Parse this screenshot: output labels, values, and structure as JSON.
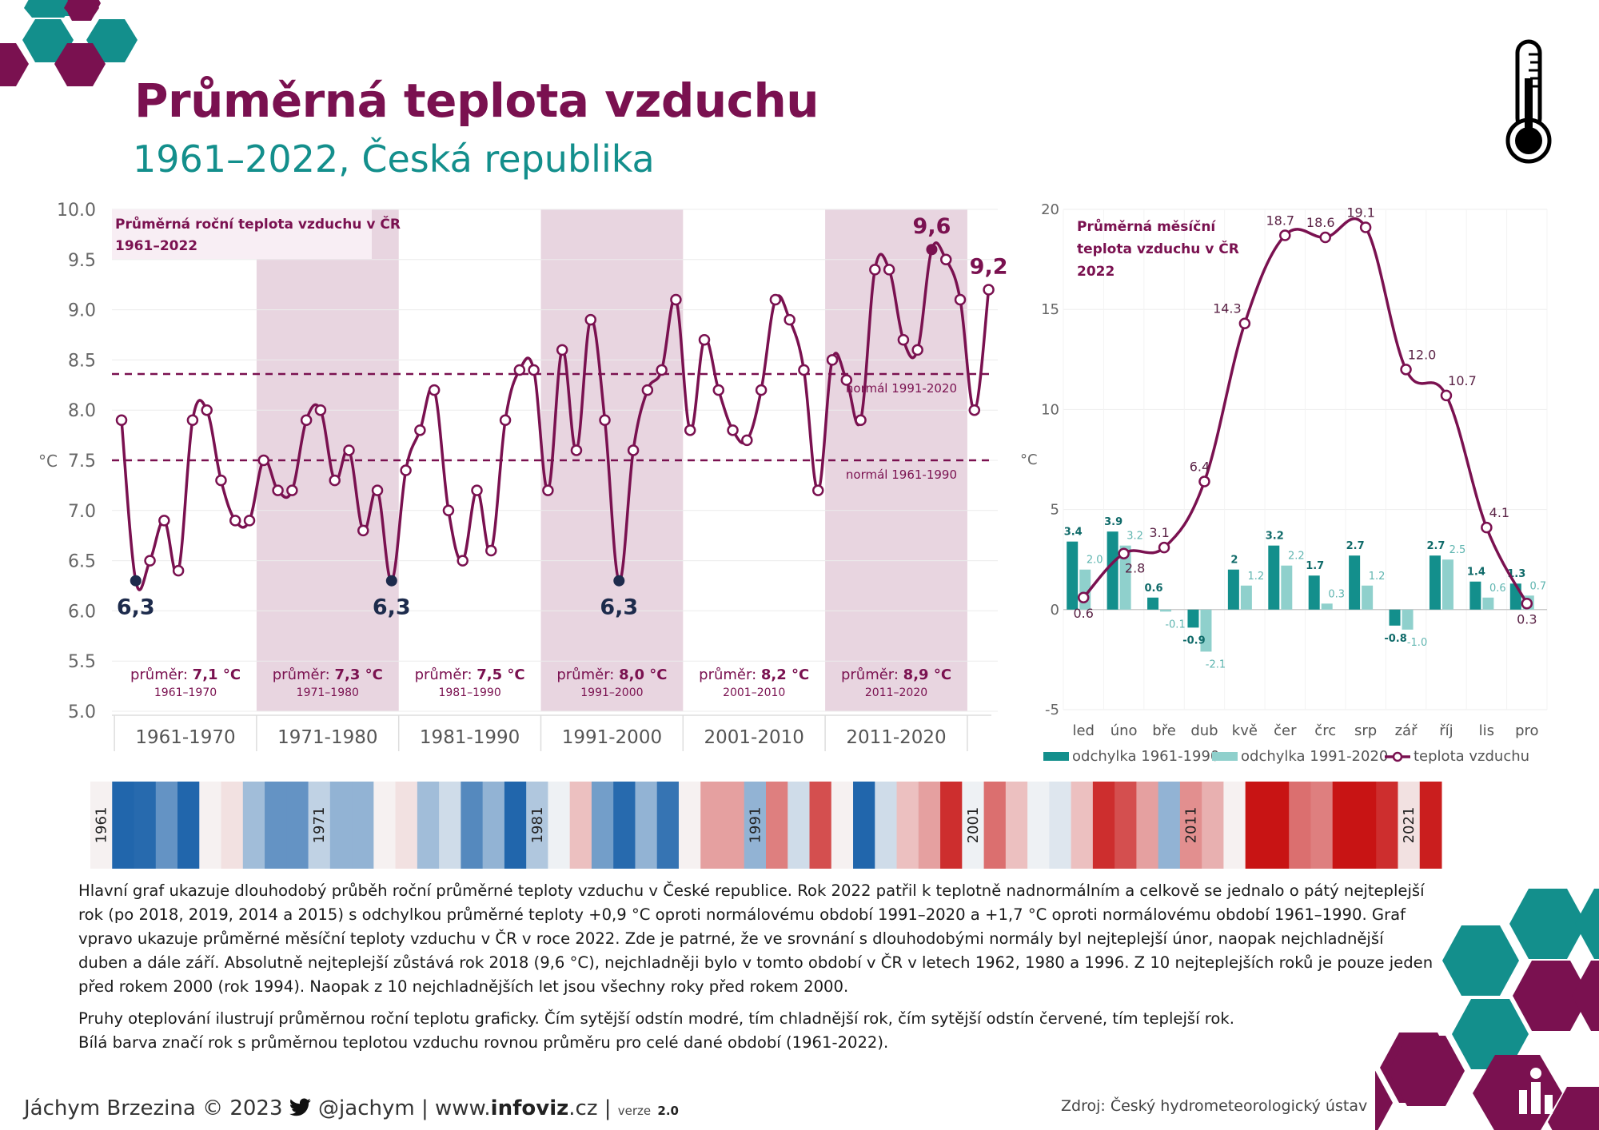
{
  "header": {
    "title": "Průměrná teplota vzduchu",
    "subtitle": "1961–2022, Česká republika"
  },
  "colors": {
    "primary": "#7a1150",
    "teal": "#138f8c",
    "light_teal": "#8fd0cc",
    "band": "#e8d5e0",
    "cold": "#2e6fb5",
    "warm": "#c81d1d"
  },
  "icons": [
    "thermometer-icon",
    "hexagon-decor-icon",
    "twitter-icon",
    "logo-icon"
  ],
  "chart_data": [
    {
      "type": "line",
      "title": "Průměrná roční teplota vzduchu v ČR 1961–2022",
      "ylabel": "°C",
      "ylim": [
        5.0,
        10.0
      ],
      "yticks": [
        "5.0",
        "5.5",
        "6.0",
        "6.5",
        "7.0",
        "7.5",
        "8.0",
        "8.5",
        "9.0",
        "9.5",
        "10.0"
      ],
      "x": [
        1961,
        1962,
        1963,
        1964,
        1965,
        1966,
        1967,
        1968,
        1969,
        1970,
        1971,
        1972,
        1973,
        1974,
        1975,
        1976,
        1977,
        1978,
        1979,
        1980,
        1981,
        1982,
        1983,
        1984,
        1985,
        1986,
        1987,
        1988,
        1989,
        1990,
        1991,
        1992,
        1993,
        1994,
        1995,
        1996,
        1997,
        1998,
        1999,
        2000,
        2001,
        2002,
        2003,
        2004,
        2005,
        2006,
        2007,
        2008,
        2009,
        2010,
        2011,
        2012,
        2013,
        2014,
        2015,
        2016,
        2017,
        2018,
        2019,
        2020,
        2021,
        2022
      ],
      "values": [
        7.9,
        6.3,
        6.5,
        6.9,
        6.4,
        7.9,
        8.0,
        7.3,
        6.9,
        6.9,
        7.5,
        7.2,
        7.2,
        7.9,
        8.0,
        7.3,
        7.6,
        6.8,
        7.2,
        6.3,
        7.4,
        7.8,
        8.2,
        7.0,
        6.5,
        7.2,
        6.6,
        7.9,
        8.4,
        8.4,
        7.2,
        8.6,
        7.6,
        8.9,
        7.9,
        6.3,
        7.6,
        8.2,
        8.4,
        9.1,
        7.8,
        8.7,
        8.2,
        7.8,
        7.7,
        8.2,
        9.1,
        8.9,
        8.4,
        7.2,
        8.5,
        8.3,
        7.9,
        9.4,
        9.4,
        8.7,
        8.6,
        9.6,
        9.5,
        9.1,
        8.0,
        9.2
      ],
      "highlighted_labels": [
        {
          "year": 1962,
          "label": "6,3"
        },
        {
          "year": 1980,
          "label": "6,3"
        },
        {
          "year": 1996,
          "label": "6,3"
        },
        {
          "year": 2018,
          "label": "9,6"
        },
        {
          "year": 2022,
          "label": "9,2"
        }
      ],
      "reference_lines": [
        {
          "label": "normál 1991-2020",
          "value": 8.36
        },
        {
          "label": "normál 1961-1990",
          "value": 7.5
        }
      ],
      "decades": [
        {
          "label": "1961-1970",
          "avg_prefix": "průměr:",
          "avg": "7,1 °C",
          "range": "1961–1970",
          "shaded": false
        },
        {
          "label": "1971-1980",
          "avg_prefix": "průměr:",
          "avg": "7,3 °C",
          "range": "1971–1980",
          "shaded": true
        },
        {
          "label": "1981-1990",
          "avg_prefix": "průměr:",
          "avg": "7,5 °C",
          "range": "1981–1990",
          "shaded": false
        },
        {
          "label": "1991-2000",
          "avg_prefix": "průměr:",
          "avg": "8,0 °C",
          "range": "1991–2000",
          "shaded": true
        },
        {
          "label": "2001-2010",
          "avg_prefix": "průměr:",
          "avg": "8,2 °C",
          "range": "2001–2010",
          "shaded": false
        },
        {
          "label": "2011-2020",
          "avg_prefix": "průměr:",
          "avg": "8,9 °C",
          "range": "2011–2020",
          "shaded": true
        }
      ],
      "grid": true
    },
    {
      "type": "bar",
      "title": "Průměrná měsíční teplota vzduchu v ČR 2022",
      "ylabel": "°C",
      "ylim": [
        -5,
        20
      ],
      "yticks": [
        "-5",
        "0",
        "5",
        "10",
        "15",
        "20"
      ],
      "categories": [
        "led",
        "úno",
        "bře",
        "dub",
        "kvě",
        "čer",
        "črc",
        "srp",
        "zář",
        "říj",
        "lis",
        "pro"
      ],
      "series": [
        {
          "name": "odchylka 1961-1990",
          "values": [
            3.4,
            3.9,
            0.6,
            -0.9,
            2,
            3.2,
            1.7,
            2.7,
            -0.8,
            2.7,
            1.4,
            1.3
          ],
          "labels": [
            "3.4",
            "3.9",
            "0.6",
            "-0.9",
            "2",
            "3.2",
            "1.7",
            "2.7",
            "-0.8",
            "2.7",
            "1.4",
            "1.3"
          ]
        },
        {
          "name": "odchylka 1991-2020",
          "values": [
            2.0,
            3.2,
            -0.1,
            -2.1,
            1.2,
            2.2,
            0.3,
            1.2,
            -1.0,
            2.5,
            0.6,
            0.7
          ],
          "labels": [
            "2.0",
            "3.2",
            "-0.1",
            "-2.1",
            "1.2",
            "2.2",
            "0.3",
            "1.2",
            "-1.0",
            "2.5",
            "0.6",
            "0.7"
          ]
        },
        {
          "name": "teplota vzduchu",
          "values": [
            0.6,
            2.8,
            3.1,
            6.4,
            14.3,
            18.7,
            18.6,
            19.1,
            12.0,
            10.7,
            4.1,
            0.3
          ],
          "labels": [
            "0.6",
            "2.8",
            "3.1",
            "6.4",
            "14.3",
            "18.7",
            "18.6",
            "19.1",
            "12.0",
            "10.7",
            "4.1",
            "0.3"
          ]
        }
      ],
      "grid": true,
      "legend_position": "bottom"
    },
    {
      "type": "heatmap",
      "title": "",
      "x": [
        1961,
        1962,
        1963,
        1964,
        1965,
        1966,
        1967,
        1968,
        1969,
        1970,
        1971,
        1972,
        1973,
        1974,
        1975,
        1976,
        1977,
        1978,
        1979,
        1980,
        1981,
        1982,
        1983,
        1984,
        1985,
        1986,
        1987,
        1988,
        1989,
        1990,
        1991,
        1992,
        1993,
        1994,
        1995,
        1996,
        1997,
        1998,
        1999,
        2000,
        2001,
        2002,
        2003,
        2004,
        2005,
        2006,
        2007,
        2008,
        2009,
        2010,
        2011,
        2012,
        2013,
        2014,
        2015,
        2016,
        2017,
        2018,
        2019,
        2020,
        2021,
        2022
      ],
      "values": [
        7.9,
        6.3,
        6.5,
        6.9,
        6.4,
        7.9,
        8.0,
        7.3,
        6.9,
        6.9,
        7.5,
        7.2,
        7.2,
        7.9,
        8.0,
        7.3,
        7.6,
        6.8,
        7.2,
        6.3,
        7.4,
        7.8,
        8.2,
        7.0,
        6.5,
        7.2,
        6.6,
        7.9,
        8.4,
        8.4,
        7.2,
        8.6,
        7.6,
        8.9,
        7.9,
        6.3,
        7.6,
        8.2,
        8.4,
        9.1,
        7.8,
        8.7,
        8.2,
        7.8,
        7.7,
        8.2,
        9.1,
        8.9,
        8.4,
        7.2,
        8.5,
        8.3,
        7.9,
        9.4,
        9.4,
        8.7,
        8.6,
        9.6,
        9.5,
        9.1,
        8.0,
        9.2
      ],
      "labels": [
        "1961",
        "1971",
        "1981",
        "1991",
        "2001",
        "2011",
        "2021"
      ]
    }
  ],
  "description": {
    "p1": "Hlavní graf ukazuje dlouhodobý průběh roční průměrné teploty vzduchu v České republice. Rok 2022 patřil k teplotně nadnormálním a celkově se jednalo o pátý nejteplejší rok (po 2018, 2019, 2014 a 2015) s odchylkou průměrné teploty +0,9 °C oproti normálovému období 1991–2020 a +1,7 °C oproti normálovému období 1961–1990. Graf vpravo ukazuje průměrné měsíční teploty vzduchu v ČR v roce 2022. Zde je patrné, že ve srovnání s dlouhodobými normály byl nejteplejší únor, naopak nejchladnější duben a dále září. Absolutně nejteplejší zůstává rok 2018 (9,6 °C), nejchladněji bylo v tomto období v ČR v letech 1962, 1980 a 1996. Z 10 nejteplejších roků je pouze jeden před rokem 2000 (rok 1994). Naopak z 10 nejchladnějších let jsou všechny roky před rokem 2000.",
    "p2": "Pruhy oteplování ilustrují průměrnou roční teplotu graficky. Čím sytější odstín modré, tím chladnější rok, čím sytější odstín červené, tím teplejší rok.",
    "p3": "Bílá barva značí rok s průměrnou teplotou vzduchu rovnou průměru pro celé dané období (1961-2022)."
  },
  "footer": {
    "author": "Jáchym Brzezina © 2023",
    "twitter": "@jachym",
    "website_prefix": "www.",
    "website_bold": "infoviz",
    "website_suffix": ".cz",
    "version_label": "verze",
    "version": "2.0",
    "sep": "|",
    "source": "Zdroj: Český hydrometeorologický ústav"
  }
}
